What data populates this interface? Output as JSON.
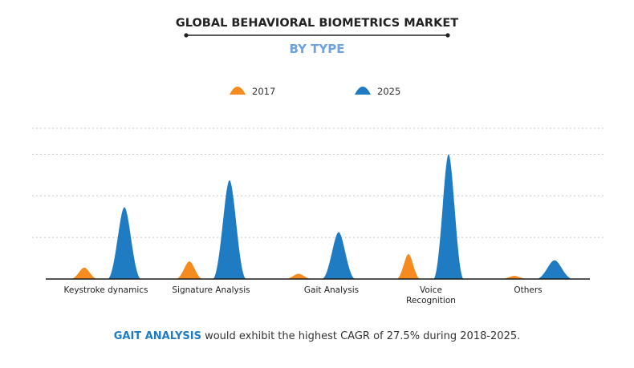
{
  "colors": {
    "series_2017": "#f58a1f",
    "series_2025": "#1f7cc3",
    "subtitle": "#6ea3e0",
    "highlight": "#1f7cc3",
    "title": "#222222",
    "grid": "#c8c8c8",
    "axis": "#1a1a1a"
  },
  "chart_data": {
    "type": "area",
    "title": "GLOBAL BEHAVIORAL BIOMETRICS MARKET",
    "subtitle": "BY TYPE",
    "categories": [
      "Keystroke dynamics",
      "Signature Analysis",
      "Gait Analysis",
      "Voice Recognition",
      "Others"
    ],
    "category_lines": [
      [
        "Keystroke dynamics"
      ],
      [
        "Signature Analysis"
      ],
      [
        "Gait Analysis"
      ],
      [
        "Voice",
        "Recognition"
      ],
      [
        "Others"
      ]
    ],
    "series": [
      {
        "name": "2017",
        "values": [
          1.1,
          1.7,
          0.5,
          2.4,
          0.3
        ]
      },
      {
        "name": "2025",
        "values": [
          6.9,
          9.5,
          4.5,
          12.0,
          1.8
        ]
      }
    ],
    "ylim": [
      0,
      14.5
    ],
    "y_gridlines": [
      4,
      8,
      12,
      14.5
    ],
    "y_ticks_shown": false,
    "grid": true,
    "legend_position": "top-center",
    "xlabel": "",
    "ylabel": ""
  },
  "caption": {
    "highlight": "GAIT ANALYSIS",
    "text": " would exhibit the highest CAGR of 27.5% during 2018-2025."
  }
}
